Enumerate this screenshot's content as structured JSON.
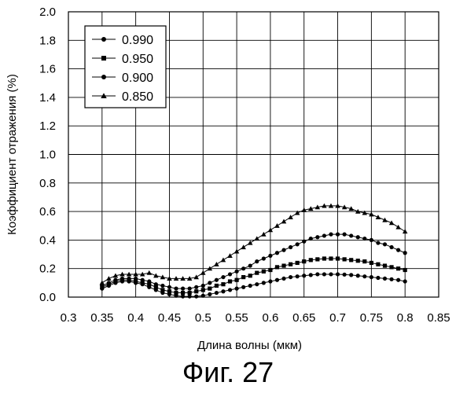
{
  "caption": "Фиг. 27",
  "chart_data": {
    "type": "line",
    "title": "",
    "xlabel": "Длина волны (мкм)",
    "ylabel": "Коэффициент отражения (%)",
    "xlim": [
      0.3,
      0.85
    ],
    "ylim": [
      0.0,
      2.0
    ],
    "x_ticks": [
      "0.3",
      "0.35",
      "0.4",
      "0.45",
      "0.5",
      "0.55",
      "0.6",
      "0.65",
      "0.7",
      "0.75",
      "0.8",
      "0.85"
    ],
    "y_ticks": [
      "0.0",
      "0.2",
      "0.4",
      "0.6",
      "0.8",
      "1.0",
      "1.2",
      "1.4",
      "1.6",
      "1.8",
      "2.0"
    ],
    "x_tick_values": [
      0.3,
      0.35,
      0.4,
      0.45,
      0.5,
      0.55,
      0.6,
      0.65,
      0.7,
      0.75,
      0.8,
      0.85
    ],
    "y_tick_values": [
      0.0,
      0.2,
      0.4,
      0.6,
      0.8,
      1.0,
      1.2,
      1.4,
      1.6,
      1.8,
      2.0
    ],
    "grid": true,
    "legend_position": "top-left",
    "series": [
      {
        "name": "0.990",
        "marker": "circle",
        "x": [
          0.35,
          0.36,
          0.37,
          0.38,
          0.39,
          0.4,
          0.41,
          0.42,
          0.43,
          0.44,
          0.45,
          0.46,
          0.47,
          0.48,
          0.49,
          0.5,
          0.51,
          0.52,
          0.53,
          0.54,
          0.55,
          0.56,
          0.57,
          0.58,
          0.59,
          0.6,
          0.61,
          0.62,
          0.63,
          0.64,
          0.65,
          0.66,
          0.67,
          0.68,
          0.69,
          0.7,
          0.71,
          0.72,
          0.73,
          0.74,
          0.75,
          0.76,
          0.77,
          0.78,
          0.79,
          0.8
        ],
        "y": [
          0.06,
          0.08,
          0.1,
          0.11,
          0.11,
          0.1,
          0.09,
          0.07,
          0.05,
          0.03,
          0.02,
          0.01,
          0.005,
          0.005,
          0.005,
          0.01,
          0.02,
          0.03,
          0.04,
          0.05,
          0.06,
          0.07,
          0.08,
          0.09,
          0.1,
          0.11,
          0.12,
          0.13,
          0.14,
          0.145,
          0.15,
          0.155,
          0.16,
          0.16,
          0.16,
          0.16,
          0.158,
          0.155,
          0.15,
          0.145,
          0.14,
          0.135,
          0.13,
          0.125,
          0.12,
          0.11
        ]
      },
      {
        "name": "0.950",
        "marker": "square",
        "x": [
          0.35,
          0.36,
          0.37,
          0.38,
          0.39,
          0.4,
          0.41,
          0.42,
          0.43,
          0.44,
          0.45,
          0.46,
          0.47,
          0.48,
          0.49,
          0.5,
          0.51,
          0.52,
          0.53,
          0.54,
          0.55,
          0.56,
          0.57,
          0.58,
          0.59,
          0.6,
          0.61,
          0.62,
          0.63,
          0.64,
          0.65,
          0.66,
          0.67,
          0.68,
          0.69,
          0.7,
          0.71,
          0.72,
          0.73,
          0.74,
          0.75,
          0.76,
          0.77,
          0.78,
          0.79,
          0.8
        ],
        "y": [
          0.07,
          0.09,
          0.11,
          0.12,
          0.12,
          0.11,
          0.1,
          0.09,
          0.07,
          0.05,
          0.04,
          0.03,
          0.03,
          0.03,
          0.04,
          0.05,
          0.06,
          0.08,
          0.09,
          0.11,
          0.12,
          0.14,
          0.15,
          0.17,
          0.18,
          0.19,
          0.21,
          0.22,
          0.23,
          0.24,
          0.25,
          0.26,
          0.265,
          0.27,
          0.27,
          0.27,
          0.265,
          0.26,
          0.255,
          0.25,
          0.24,
          0.23,
          0.22,
          0.21,
          0.2,
          0.19
        ]
      },
      {
        "name": "0.900",
        "marker": "circle",
        "x": [
          0.35,
          0.36,
          0.37,
          0.38,
          0.39,
          0.4,
          0.41,
          0.42,
          0.43,
          0.44,
          0.45,
          0.46,
          0.47,
          0.48,
          0.49,
          0.5,
          0.51,
          0.52,
          0.53,
          0.54,
          0.55,
          0.56,
          0.57,
          0.58,
          0.59,
          0.6,
          0.61,
          0.62,
          0.63,
          0.64,
          0.65,
          0.66,
          0.67,
          0.68,
          0.69,
          0.7,
          0.71,
          0.72,
          0.73,
          0.74,
          0.75,
          0.76,
          0.77,
          0.78,
          0.79,
          0.8
        ],
        "y": [
          0.08,
          0.1,
          0.12,
          0.13,
          0.13,
          0.13,
          0.12,
          0.11,
          0.09,
          0.08,
          0.07,
          0.06,
          0.06,
          0.06,
          0.07,
          0.08,
          0.1,
          0.12,
          0.14,
          0.16,
          0.18,
          0.2,
          0.22,
          0.25,
          0.27,
          0.29,
          0.31,
          0.33,
          0.35,
          0.37,
          0.39,
          0.41,
          0.42,
          0.43,
          0.44,
          0.44,
          0.44,
          0.43,
          0.42,
          0.41,
          0.4,
          0.38,
          0.37,
          0.35,
          0.33,
          0.31
        ]
      },
      {
        "name": "0.850",
        "marker": "triangle",
        "x": [
          0.35,
          0.36,
          0.37,
          0.38,
          0.39,
          0.4,
          0.41,
          0.42,
          0.43,
          0.44,
          0.45,
          0.46,
          0.47,
          0.48,
          0.49,
          0.5,
          0.51,
          0.52,
          0.53,
          0.54,
          0.55,
          0.56,
          0.57,
          0.58,
          0.59,
          0.6,
          0.61,
          0.62,
          0.63,
          0.64,
          0.65,
          0.66,
          0.67,
          0.68,
          0.69,
          0.7,
          0.71,
          0.72,
          0.73,
          0.74,
          0.75,
          0.76,
          0.77,
          0.78,
          0.79,
          0.8
        ],
        "y": [
          0.1,
          0.13,
          0.15,
          0.16,
          0.16,
          0.16,
          0.16,
          0.17,
          0.15,
          0.14,
          0.13,
          0.13,
          0.13,
          0.13,
          0.14,
          0.17,
          0.2,
          0.23,
          0.26,
          0.29,
          0.32,
          0.35,
          0.38,
          0.41,
          0.44,
          0.47,
          0.5,
          0.53,
          0.56,
          0.59,
          0.61,
          0.62,
          0.63,
          0.64,
          0.64,
          0.64,
          0.63,
          0.62,
          0.6,
          0.59,
          0.58,
          0.56,
          0.54,
          0.52,
          0.49,
          0.46
        ]
      }
    ]
  }
}
